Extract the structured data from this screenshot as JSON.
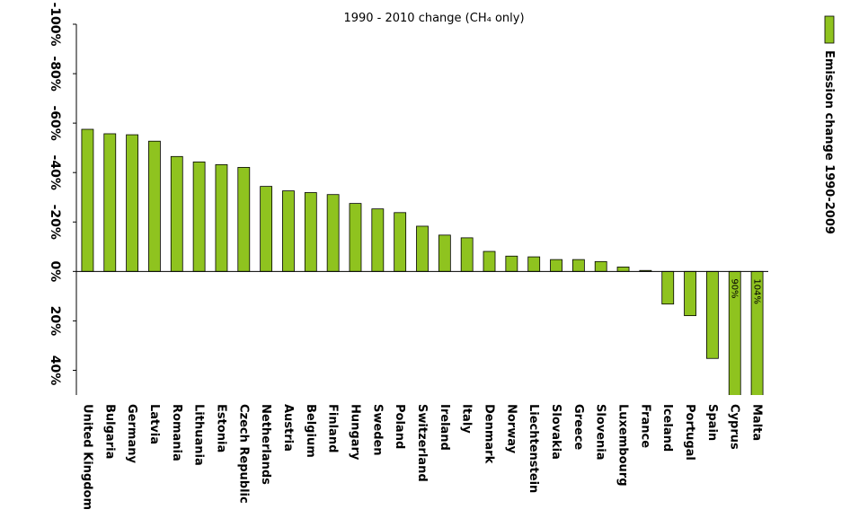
{
  "chart_data": {
    "type": "bar",
    "title": "1990 - 2010 change (CH₄ only)",
    "categories": [
      "United Kingdom",
      "Bulgaria",
      "Germany",
      "Latvia",
      "Romania",
      "Lithuania",
      "Estonia",
      "Czech Republic",
      "Netherlands",
      "Austria",
      "Belgium",
      "Finland",
      "Hungary",
      "Sweden",
      "Poland",
      "Switzerland",
      "Ireland",
      "Italy",
      "Denmark",
      "Norway",
      "Liechtenstein",
      "Slovakia",
      "Greece",
      "Slovenia",
      "Luxembourg",
      "France",
      "Iceland",
      "Portugal",
      "Spain",
      "Cyprus",
      "Malta"
    ],
    "series": [
      {
        "name": "Emission change 1990-2009",
        "color": "#8fc31f",
        "values": [
          -57.5,
          -55.7,
          -55.3,
          -52.7,
          -46.5,
          -44.3,
          -43.2,
          -42.1,
          -34.4,
          -32.6,
          -31.9,
          -31.1,
          -27.5,
          -25.3,
          -23.8,
          -18.3,
          -14.7,
          -13.6,
          -8.1,
          -6.2,
          -5.9,
          -4.8,
          -4.8,
          -4.0,
          -1.8,
          -0.4,
          13.2,
          17.9,
          35.2,
          90,
          104
        ],
        "value_labels": [
          null,
          null,
          null,
          null,
          null,
          null,
          null,
          null,
          null,
          null,
          null,
          null,
          null,
          null,
          null,
          null,
          null,
          null,
          null,
          null,
          null,
          null,
          null,
          null,
          null,
          null,
          null,
          null,
          null,
          "90%",
          "104%"
        ]
      }
    ],
    "ylim": [
      -100,
      50
    ],
    "inverted_y": true,
    "yticks": [
      {
        "value": -100,
        "label": "-100%"
      },
      {
        "value": -80,
        "label": "-80%"
      },
      {
        "value": -60,
        "label": "-60%"
      },
      {
        "value": -40,
        "label": "-40%"
      },
      {
        "value": -20,
        "label": "-20%"
      },
      {
        "value": 0,
        "label": "0%"
      },
      {
        "value": 20,
        "label": "20%"
      },
      {
        "value": 40,
        "label": "40%"
      }
    ],
    "legend": "right"
  }
}
